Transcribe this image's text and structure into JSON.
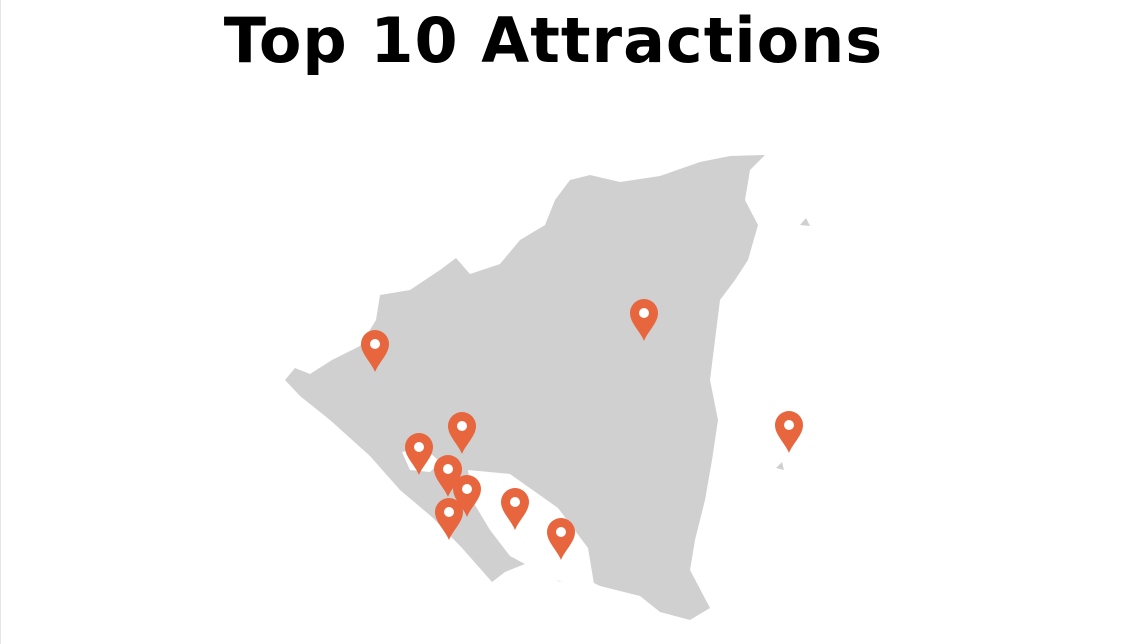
{
  "title": "Top 10 Attractions"
}
